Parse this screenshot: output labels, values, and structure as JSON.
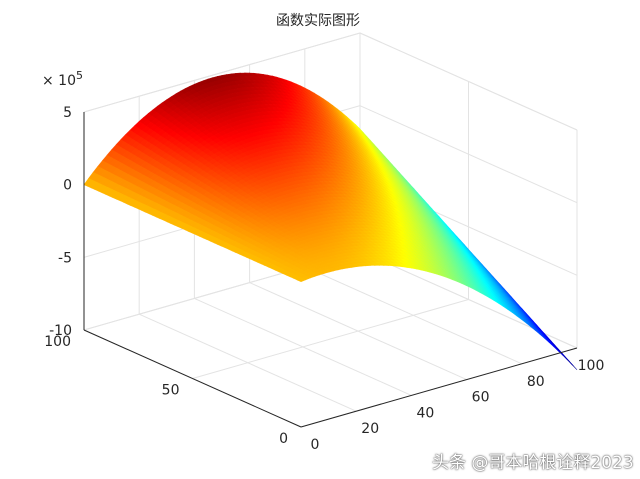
{
  "chart_data": {
    "type": "surface",
    "title": "函数实际图形",
    "xlabel": "",
    "ylabel": "",
    "zlabel": "",
    "xlim": [
      0,
      100
    ],
    "ylim": [
      0,
      100
    ],
    "zlim": [
      -10,
      5
    ],
    "z_exponent_label": "× 10",
    "z_exponent_power": "5",
    "x_ticks": [
      "0",
      "20",
      "40",
      "60",
      "80",
      "100"
    ],
    "y_ticks": [
      "0",
      "50",
      "100"
    ],
    "z_ticks": [
      "-10",
      "-5",
      "0",
      "5"
    ],
    "grid": true,
    "colormap": "jet",
    "surface_points": [
      {
        "x": 0,
        "y": 0,
        "z": 0
      },
      {
        "x": 0,
        "y": 100,
        "z": 0
      },
      {
        "x": 50,
        "y": 100,
        "z": 5.2
      },
      {
        "x": 100,
        "y": 100,
        "z": -1.4
      },
      {
        "x": 100,
        "y": 0,
        "z": -11.5
      },
      {
        "x": 50,
        "y": 0,
        "z": 0.6
      }
    ]
  },
  "watermark": "头条 @哥本哈根诠释2023"
}
